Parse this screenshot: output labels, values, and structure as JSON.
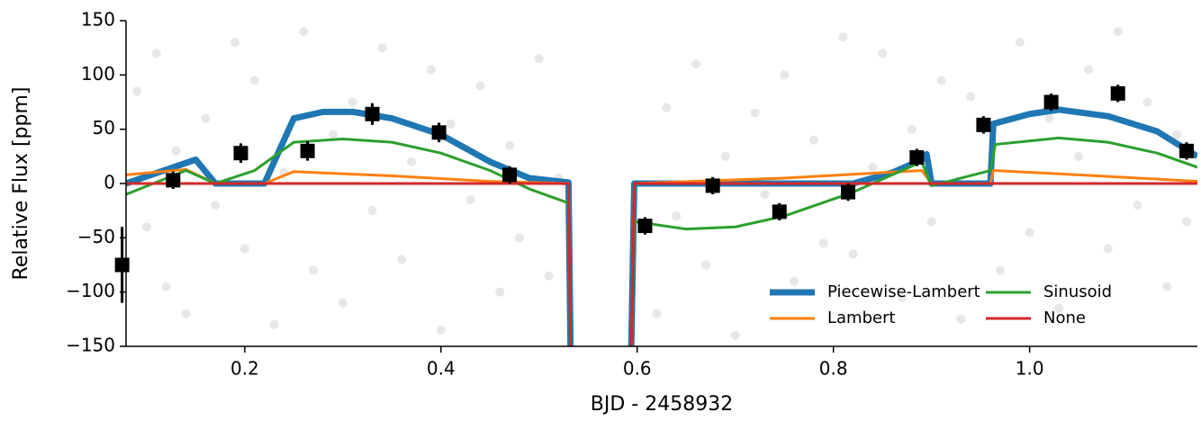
{
  "chart_data": {
    "type": "line",
    "xlabel": "BJD - 2458932",
    "ylabel": "Relative Flux [ppm]",
    "xlim": [
      0.079,
      1.171
    ],
    "ylim": [
      -150,
      150
    ],
    "xticks": [
      0.2,
      0.4,
      0.6,
      0.8,
      {
        "value": 1,
        "label": "1.0"
      }
    ],
    "yticks": [
      {
        "value": -150,
        "label": "−150"
      },
      {
        "value": -100,
        "label": "−100"
      },
      {
        "value": -50,
        "label": "−50"
      },
      0,
      50,
      100,
      150
    ],
    "legend": "lower right",
    "scatter": {
      "color": "#bbbbbb",
      "x": [
        0.09,
        0.1,
        0.11,
        0.12,
        0.13,
        0.14,
        0.16,
        0.17,
        0.19,
        0.2,
        0.21,
        0.23,
        0.24,
        0.26,
        0.27,
        0.29,
        0.3,
        0.31,
        0.33,
        0.34,
        0.36,
        0.37,
        0.39,
        0.4,
        0.41,
        0.43,
        0.44,
        0.46,
        0.47,
        0.48,
        0.5,
        0.51,
        0.52,
        0.62,
        0.63,
        0.64,
        0.66,
        0.67,
        0.69,
        0.7,
        0.72,
        0.73,
        0.75,
        0.76,
        0.78,
        0.79,
        0.81,
        0.82,
        0.84,
        0.85,
        0.87,
        0.88,
        0.9,
        0.91,
        0.93,
        0.94,
        0.96,
        0.97,
        0.99,
        1.0,
        1.02,
        1.03,
        1.05,
        1.06,
        1.08,
        1.09,
        1.11,
        1.12,
        1.14,
        1.15,
        1.16
      ],
      "values": [
        85,
        -40,
        120,
        -95,
        30,
        -120,
        60,
        -20,
        130,
        -60,
        95,
        -130,
        10,
        140,
        -80,
        45,
        -110,
        75,
        -25,
        125,
        -70,
        20,
        105,
        -135,
        55,
        -15,
        90,
        -100,
        35,
        -50,
        115,
        -85,
        5,
        -120,
        70,
        -30,
        110,
        -75,
        25,
        -140,
        65,
        -10,
        100,
        -90,
        40,
        -55,
        135,
        -65,
        15,
        120,
        -105,
        50,
        -35,
        95,
        -125,
        80,
        0,
        -80,
        130,
        -45,
        60,
        -115,
        25,
        105,
        -60,
        140,
        -20,
        75,
        -95,
        45,
        -35
      ]
    },
    "binned": {
      "color": "#000000",
      "x": [
        0.075,
        0.127,
        0.196,
        0.264,
        0.33,
        0.398,
        0.47,
        0.608,
        0.677,
        0.745,
        0.815,
        0.885,
        0.953,
        1.022,
        1.09,
        1.16
      ],
      "values": [
        -75,
        3,
        28,
        30,
        64,
        47,
        8,
        -39,
        -2,
        -26,
        -8,
        24,
        54,
        75,
        83,
        30
      ],
      "errors": [
        35,
        8,
        9,
        9,
        10,
        9,
        8,
        8,
        8,
        8,
        8,
        8,
        8,
        8,
        8,
        8
      ]
    },
    "series": [
      {
        "name": "Piecewise-Lambert",
        "color": "#1f77b4",
        "width": 7,
        "x": [
          0.079,
          0.15,
          0.17,
          0.22,
          0.25,
          0.28,
          0.31,
          0.35,
          0.4,
          0.45,
          0.49,
          0.53,
          0.532,
          null,
          0.594,
          0.597,
          0.82,
          0.86,
          0.89,
          0.895,
          0.9,
          0.96,
          0.963,
          1.0,
          1.03,
          1.08,
          1.13,
          1.171
        ],
        "values": [
          0,
          22,
          0,
          0,
          60,
          66,
          66,
          60,
          45,
          20,
          5,
          1,
          -150,
          null,
          -150,
          0,
          0,
          10,
          22,
          27,
          0,
          0,
          55,
          64,
          68,
          62,
          48,
          25
        ]
      },
      {
        "name": "Lambert",
        "color": "#ff7f0e",
        "width": 3,
        "x": [
          0.079,
          0.14,
          0.17,
          0.22,
          0.25,
          0.35,
          0.45,
          0.53,
          0.532,
          null,
          0.594,
          0.597,
          0.75,
          0.89,
          0.9,
          0.96,
          0.963,
          1.05,
          1.171
        ],
        "values": [
          8,
          13,
          0,
          0,
          11,
          7,
          2,
          0,
          -150,
          null,
          -150,
          0,
          5,
          12,
          0,
          0,
          12,
          8,
          2
        ]
      },
      {
        "name": "Sinusoid",
        "color": "#2ca02c",
        "width": 3,
        "x": [
          0.079,
          0.14,
          0.17,
          0.21,
          0.25,
          0.3,
          0.35,
          0.4,
          0.45,
          0.49,
          0.53,
          0.532,
          null,
          0.594,
          0.597,
          0.65,
          0.7,
          0.75,
          0.82,
          0.89,
          0.9,
          0.96,
          0.965,
          1.03,
          1.08,
          1.13,
          1.171
        ],
        "values": [
          -10,
          12,
          0,
          12,
          38,
          41,
          38,
          28,
          12,
          -5,
          -18,
          -150,
          null,
          -150,
          -35,
          -42,
          -40,
          -30,
          -8,
          20,
          -2,
          12,
          36,
          42,
          38,
          28,
          15
        ]
      },
      {
        "name": "None",
        "color": "#d62728",
        "width": 3,
        "x": [
          0.079,
          0.53,
          0.532,
          null,
          0.594,
          0.597,
          1.171
        ],
        "values": [
          0,
          0,
          -150,
          null,
          -150,
          0,
          0
        ]
      }
    ]
  }
}
